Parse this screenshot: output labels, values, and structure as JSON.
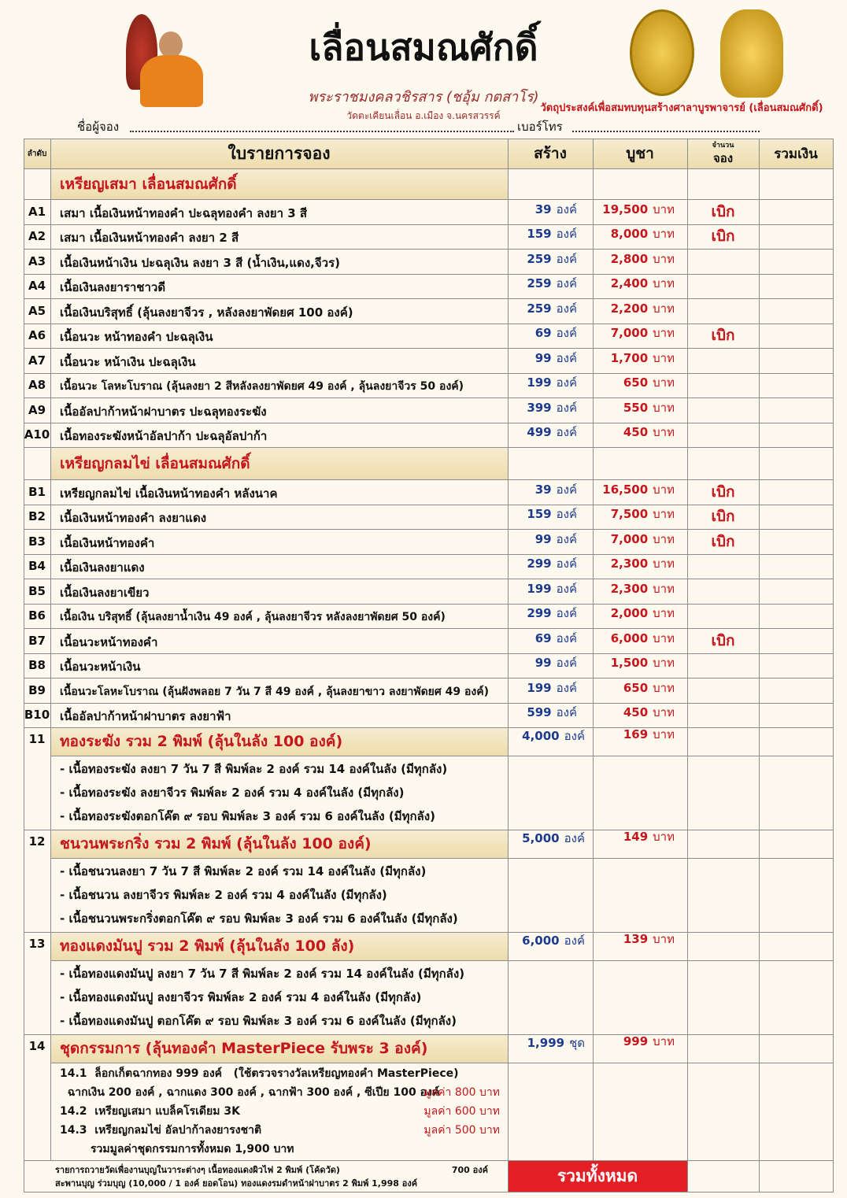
{
  "header": {
    "title": "เลื่อนสมณศักดิ์",
    "monk": "พระราชมงคลวชิรสาร (ชอุ้ม กตสาโร)",
    "temple": "วัดตะเคียนเลื่อน อ.เมือง จ.นครสวรรค์",
    "purpose": "วัตถุประสงค์เพื่อสมทบทุนสร้างศาลาบูรพาจารย์ (เลื่อนสมณศักดิ์)",
    "name_field": "ชื่อผู้จอง",
    "phone_field": "เบอร์โทร"
  },
  "table": {
    "columns": {
      "no": "ลำดับ",
      "item": "ใบรายการจอง",
      "build": "สร้าง",
      "price": "บูชา",
      "order_top": "จำนวน",
      "order": "จอง",
      "sum": "รวมเงิน"
    },
    "sections": [
      {
        "title": "เหรียญเสมา  เลื่อนสมณศักดิ์",
        "rows": [
          {
            "code": "A1",
            "name": "เสมา เนื้อเงินหน้าทองคำ ปะฉลุทองคำ ลงยา 3 สี",
            "qty": "39",
            "qty_unit": "องค์",
            "price": "19,500",
            "price_unit": "บาท",
            "note": "เบิก"
          },
          {
            "code": "A2",
            "name": "เสมา เนื้อเงินหน้าทองคำ ลงยา 2 สี",
            "qty": "159",
            "qty_unit": "องค์",
            "price": "8,000",
            "price_unit": "บาท",
            "note": "เบิก"
          },
          {
            "code": "A3",
            "name": "เนื้อเงินหน้าเงิน ปะฉลุเงิน ลงยา 3 สี  (น้ำเงิน,แดง,จีวร)",
            "qty": "259",
            "qty_unit": "องค์",
            "price": "2,800",
            "price_unit": "บาท"
          },
          {
            "code": "A4",
            "name": "เนื้อเงินลงยาราชาวดี",
            "qty": "259",
            "qty_unit": "องค์",
            "price": "2,400",
            "price_unit": "บาท"
          },
          {
            "code": "A5",
            "name": "เนื้อเงินบริสุทธิ์ (ลุ้นลงยาจีวร , หลังลงยาพัดยศ  100 องค์)",
            "qty": "259",
            "qty_unit": "องค์",
            "price": "2,200",
            "price_unit": "บาท"
          },
          {
            "code": "A6",
            "name": "เนื้อนวะ หน้าทองคำ ปะฉลุเงิน",
            "qty": "69",
            "qty_unit": "องค์",
            "price": "7,000",
            "price_unit": "บาท",
            "note": "เบิก"
          },
          {
            "code": "A7",
            "name": "เนื้อนวะ หน้าเงิน ปะฉลุเงิน",
            "qty": "99",
            "qty_unit": "องค์",
            "price": "1,700",
            "price_unit": "บาท"
          },
          {
            "code": "A8",
            "name": "เนื้อนวะ โลหะโบราณ (ลุ้นลงยา 2 สีหลังลงยาพัดยศ 49 องค์ , ลุ้นลงยาจีวร 50 องค์)",
            "qty": "199",
            "qty_unit": "องค์",
            "price": "650",
            "price_unit": "บาท"
          },
          {
            "code": "A9",
            "name": "เนื้ออัลปาก้าหน้าฝาบาตร ปะฉลุทองระฆัง",
            "qty": "399",
            "qty_unit": "องค์",
            "price": "550",
            "price_unit": "บาท"
          },
          {
            "code": "A10",
            "name": "เนื้อทองระฆังหน้าอัลปาก้า ปะฉลุอัลปาก้า",
            "qty": "499",
            "qty_unit": "องค์",
            "price": "450",
            "price_unit": "บาท"
          }
        ]
      },
      {
        "title": "เหรียญกลมไข่  เลื่อนสมณศักดิ์",
        "rows": [
          {
            "code": "B1",
            "name": "เหรียญกลมไข่  เนื้อเงินหน้าทองคำ หลังนาค",
            "qty": "39",
            "qty_unit": "องค์",
            "price": "16,500",
            "price_unit": "บาท",
            "note": "เบิก"
          },
          {
            "code": "B2",
            "name": "เนื้อเงินหน้าทองคำ ลงยาแดง",
            "qty": "159",
            "qty_unit": "องค์",
            "price": "7,500",
            "price_unit": "บาท",
            "note": "เบิก"
          },
          {
            "code": "B3",
            "name": "เนื้อเงินหน้าทองคำ",
            "qty": "99",
            "qty_unit": "องค์",
            "price": "7,000",
            "price_unit": "บาท",
            "note": "เบิก"
          },
          {
            "code": "B4",
            "name": "เนื้อเงินลงยาแดง",
            "qty": "299",
            "qty_unit": "องค์",
            "price": "2,300",
            "price_unit": "บาท"
          },
          {
            "code": "B5",
            "name": "เนื้อเงินลงยาเขียว",
            "qty": "199",
            "qty_unit": "องค์",
            "price": "2,300",
            "price_unit": "บาท"
          },
          {
            "code": "B6",
            "name": "เนื้อเงิน บริสุทธิ์ (ลุ้นลงยาน้ำเงิน 49 องค์ , ลุ้นลงยาจีวร หลังลงยาพัดยศ 50 องค์)",
            "qty": "299",
            "qty_unit": "องค์",
            "price": "2,000",
            "price_unit": "บาท"
          },
          {
            "code": "B7",
            "name": "เนื้อนวะหน้าทองคำ",
            "qty": "69",
            "qty_unit": "องค์",
            "price": "6,000",
            "price_unit": "บาท",
            "note": "เบิก"
          },
          {
            "code": "B8",
            "name": "เนื้อนวะหน้าเงิน",
            "qty": "99",
            "qty_unit": "องค์",
            "price": "1,500",
            "price_unit": "บาท"
          },
          {
            "code": "B9",
            "name": "เนื้อนวะโลหะโบราณ (ลุ้นฝังพลอย 7 วัน 7 สี 49 องค์ , ลุ้นลงยาขาว ลงยาพัดยศ 49 องค์)",
            "qty": "199",
            "qty_unit": "องค์",
            "price": "650",
            "price_unit": "บาท"
          },
          {
            "code": "B10",
            "name": "เนื้ออัลปาก้าหน้าฝาบาตร ลงยาฟ้า",
            "qty": "599",
            "qty_unit": "องค์",
            "price": "450",
            "price_unit": "บาท"
          }
        ]
      }
    ],
    "sets": [
      {
        "no": "11",
        "title": "ทองระฆัง  รวม 2 พิมพ์  (ลุ้นในลัง 100 องค์)",
        "qty": "4,000",
        "qty_unit": "องค์",
        "price": "169",
        "price_unit": "บาท",
        "details": [
          "- เนื้อทองระฆัง ลงยา 7 วัน 7 สี พิมพ์ละ 2 องค์  รวม 14 องค์ในลัง (มีทุกลัง)",
          "- เนื้อทองระฆัง ลงยาจีวร  พิมพ์ละ 2 องค์          รวม  4  องค์ในลัง (มีทุกลัง)",
          "- เนื้อทองระฆังตอกโค๊ต ๙ รอบ พิมพ์ละ 3 องค์  รวม 6 องค์ในลัง  (มีทุกลัง)"
        ]
      },
      {
        "no": "12",
        "title": "ชนวนพระกริ่ง  รวม 2 พิมพ์  (ลุ้นในลัง 100 องค์)",
        "qty": "5,000",
        "qty_unit": "องค์",
        "price": "149",
        "price_unit": "บาท",
        "details": [
          "- เนื้อชนวนลงยา 7 วัน 7 สี พิมพ์ละ 2 องค์              รวม 14 องค์ในลัง (มีทุกลัง)",
          "- เนื้อชนวน ลงยาจีวร พิมพ์ละ 2 องค์                    รวม 4 องค์ในลัง (มีทุกลัง)",
          "- เนื้อชนวนพระกริ่งตอกโค๊ต ๙ รอบ พิมพ์ละ 3 องค์  รวม 6 องค์ในลัง (มีทุกลัง)"
        ]
      },
      {
        "no": "13",
        "title": "ทองแดงมันปู  รวม 2 พิมพ์  (ลุ้นในลัง 100 ลัง)",
        "qty": "6,000",
        "qty_unit": "องค์",
        "price": "139",
        "price_unit": "บาท",
        "details": [
          "- เนื้อทองแดงมันปู ลงยา 7 วัน 7 สี พิมพ์ละ 2 องค์  รวม 14 องค์ในลัง (มีทุกลัง)",
          "- เนื้อทองแดงมันปู ลงยาจีวร พิมพ์ละ 2 องค์          รวม  4  องค์ในลัง (มีทุกลัง)",
          "- เนื้อทองแดงมันปู ตอกโค๊ต ๙ รอบ พิมพ์ละ 3 องค์ รวม 6  องค์ในลัง (มีทุกลัง)"
        ]
      },
      {
        "no": "14",
        "title": "ชุดกรรมการ (ลุ้นทองคำ MasterPiece  รับพระ 3 องค์)",
        "qty": "1,999",
        "qty_unit": "ชุด",
        "price": "999",
        "price_unit": "บาท",
        "details": [
          {
            "text": "14.1  ล็อกเก็ตฉากทอง 999 องค์   (ใช้ตรวจรางวัลเหรียญทองคำ MasterPiece)"
          },
          {
            "text": "  ฉากเงิน 200 องค์ , ฉากแดง 300 องค์ , ฉากฟ้า 300 องค์ , ซีเปีย 100 องค์",
            "value": "มูลค่า  800  บาท"
          },
          {
            "text": "14.2  เหรียญเสมา แบล็คโรเดียม 3K",
            "value": "มูลค่า  600  บาท"
          },
          {
            "text": "14.3  เหรียญกลมไข่ อัลปาก้าลงยารงชาติ",
            "value": "มูลค่า  500  บาท"
          },
          {
            "text": "        รวมมูลค่าชุดกรรมการทั้งหมด 1,900 บาท"
          }
        ]
      }
    ]
  },
  "footer": {
    "line1": "รายการถวายวัดเพื่องานบุญในวาระต่างๆ  เนื้อทองแดงผิวไฟ 2 พิมพ์  (โค้ดวัด)",
    "line1_amount": "700 องค์",
    "line2": "สะพานบุญ ร่วมบุญ (10,000 / 1 องค์ ยอดโอน)  ทองแดงรมดำหน้าฝาบาตร  2 พิมพ์  1,998 องค์",
    "total": "รวมทั้งหมด"
  }
}
